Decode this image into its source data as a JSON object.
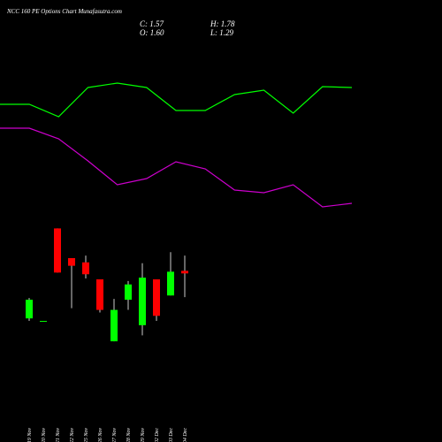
{
  "chart_data": [
    {
      "type": "candlestick",
      "title": "NCC 160 PE Options Chart Munafasutra.com",
      "info": [
        "C: 1.57",
        "H: 1.78",
        "O: 1.60",
        "L: 1.29"
      ],
      "categories": [
        "19 Nov",
        "20 Nov",
        "21 Nov",
        "22 Nov",
        "25 Nov",
        "26 Nov",
        "27 Nov",
        "28 Nov",
        "29 Nov",
        "02 Dec",
        "03 Dec",
        "04 Dec"
      ],
      "open": [
        1.04,
        1.01,
        2.1,
        1.75,
        1.7,
        1.5,
        0.77,
        1.26,
        0.96,
        1.5,
        1.31,
        1.6
      ],
      "high": [
        1.28,
        1.01,
        2.1,
        1.75,
        1.78,
        1.5,
        1.27,
        1.48,
        1.69,
        1.5,
        1.82,
        1.78
      ],
      "low": [
        1.01,
        1.01,
        1.58,
        1.16,
        1.51,
        1.11,
        0.77,
        1.14,
        0.84,
        1.01,
        1.31,
        1.29
      ],
      "close": [
        1.26,
        1.01,
        1.58,
        1.66,
        1.56,
        1.14,
        1.14,
        1.44,
        1.52,
        1.07,
        1.59,
        1.57
      ],
      "up_color": "#00ff00",
      "down_color": "#ff0000",
      "ylim": [
        0.5,
        2.5
      ]
    },
    {
      "type": "line",
      "x": [
        0,
        1,
        2,
        3,
        4,
        5,
        6,
        7,
        8,
        9,
        10,
        11,
        12
      ],
      "xlim": [
        0,
        12
      ],
      "ylim": [
        0,
        200
      ],
      "series": [
        {
          "color": "#00ff00",
          "values": [
            142,
            142,
            128,
            161,
            166,
            161,
            135,
            135,
            153,
            158,
            132,
            162,
            161
          ]
        },
        {
          "color": "#cc00cc",
          "values": [
            115,
            115,
            103,
            78,
            51,
            58,
            77,
            69,
            45,
            42,
            51,
            26,
            30
          ]
        }
      ]
    }
  ]
}
